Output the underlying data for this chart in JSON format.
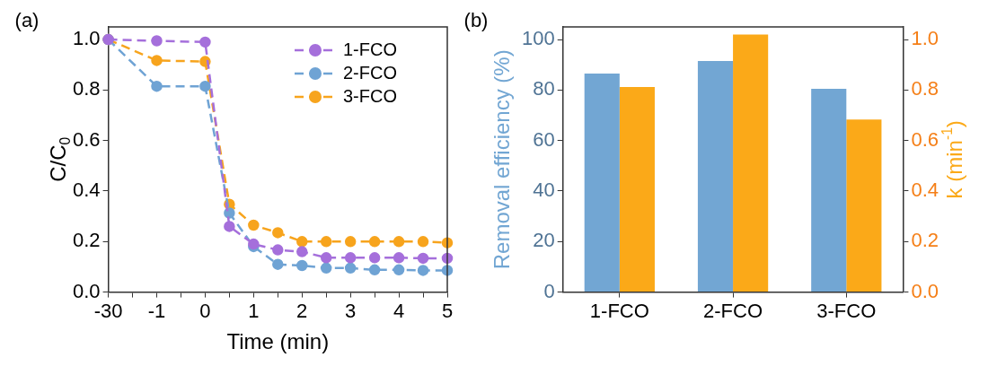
{
  "chart_data": [
    {
      "type": "line",
      "annotations": [
        "(a)"
      ],
      "xlabel": "Time (min)",
      "ylabel": "C/C$_{0}$",
      "categories": [
        "-30",
        null,
        "-1",
        null,
        "0",
        null,
        "1",
        null,
        "2",
        null,
        "3",
        null,
        "4",
        null,
        "5"
      ],
      "ylim": [
        0,
        1.05
      ],
      "yticks": [
        {
          "value": 0,
          "label": "0.0"
        },
        {
          "value": 0.2,
          "label": "0.2"
        },
        {
          "value": 0.4,
          "label": "0.4"
        },
        {
          "value": 0.6,
          "label": "0.6"
        },
        {
          "value": 0.8,
          "label": "0.8"
        },
        {
          "value": 1,
          "label": "1.0"
        }
      ],
      "legend": "top right",
      "marker": "circle",
      "line_style": "dashed",
      "series": [
        {
          "name": "1-FCO",
          "color": "#a56fdb",
          "values": [
            1.0,
            null,
            0.995,
            null,
            0.99,
            0.26,
            0.19,
            0.167,
            0.16,
            0.136,
            0.136,
            0.136,
            0.136,
            0.134,
            0.134
          ]
        },
        {
          "name": "2-FCO",
          "color": "#6fa3d4",
          "values": [
            1.0,
            null,
            0.815,
            null,
            0.815,
            0.313,
            0.18,
            0.11,
            0.105,
            0.095,
            0.095,
            0.088,
            0.088,
            0.086,
            0.086
          ]
        },
        {
          "name": "3-FCO",
          "color": "#f7a41d",
          "values": [
            1.0,
            null,
            0.917,
            null,
            0.913,
            0.348,
            0.265,
            0.235,
            0.2,
            0.2,
            0.2,
            0.2,
            0.2,
            0.2,
            0.195
          ]
        }
      ]
    },
    {
      "type": "bar",
      "annotations": [
        "(b)"
      ],
      "ylabel": "Removal efficiency (%)",
      "y2label": "k (min$^{-1}$)",
      "categories": [
        "1-FCO",
        "2-FCO",
        "3-FCO"
      ],
      "ylim": [
        0,
        105
      ],
      "yticks": [
        0,
        20,
        40,
        60,
        80,
        100
      ],
      "y2lim": [
        0,
        1.05
      ],
      "y2ticks": [
        {
          "value": 0,
          "label": "0.0"
        },
        {
          "value": 0.2,
          "label": "0.2"
        },
        {
          "value": 0.4,
          "label": "0.4"
        },
        {
          "value": 0.6,
          "label": "0.6"
        },
        {
          "value": 0.8,
          "label": "0.8"
        },
        {
          "value": 1,
          "label": "1.0"
        }
      ],
      "series": [
        {
          "color": "#72a6d3",
          "values": [
            86.5,
            91.5,
            80.5
          ]
        },
        {
          "color": "#fba918",
          "axis": "y2",
          "values": [
            0.812,
            1.02,
            0.683
          ]
        }
      ]
    }
  ]
}
